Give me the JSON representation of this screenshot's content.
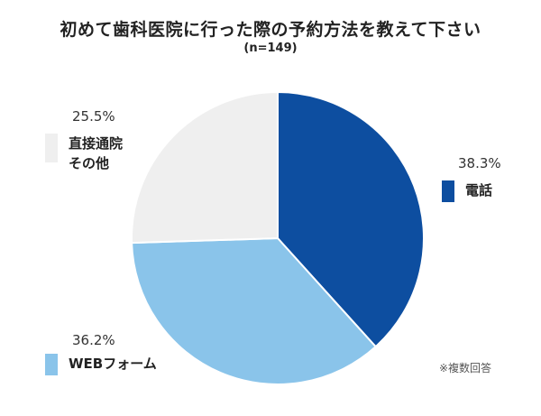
{
  "title": "初めて歯科医院に行った際の予約方法を教えて下さい",
  "subtitle": "(n=149)",
  "note": "※複数回答",
  "chart_data": {
    "type": "pie",
    "slices": [
      {
        "label": "電話",
        "value": 38.3,
        "pct_label": "38.3%",
        "color": "#0D4EA0"
      },
      {
        "label": "WEBフォーム",
        "value": 36.2,
        "pct_label": "36.2%",
        "color": "#8AC4EA"
      },
      {
        "label": "直接通院\nその他",
        "value": 25.5,
        "pct_label": "25.5%",
        "color": "#EFEFEF"
      }
    ]
  }
}
